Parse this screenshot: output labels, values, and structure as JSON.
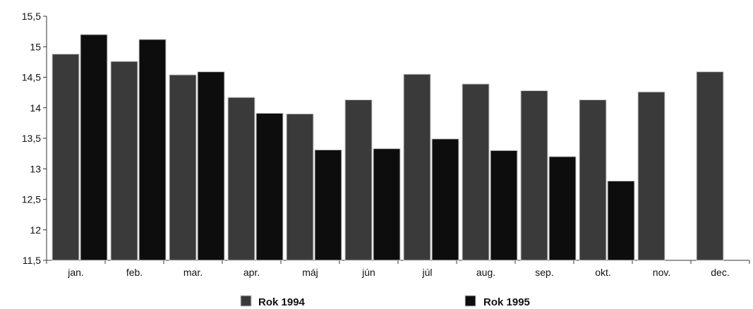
{
  "chart_data": {
    "type": "bar",
    "title": "",
    "xlabel": "",
    "ylabel": "",
    "categories": [
      "jan.",
      "feb.",
      "mar.",
      "apr.",
      "máj",
      "jún",
      "júl",
      "aug.",
      "sep.",
      "okt.",
      "nov.",
      "dec."
    ],
    "series": [
      {
        "name": "Rok 1994",
        "color": "#3a3a3a",
        "values": [
          14.88,
          14.76,
          14.54,
          14.17,
          13.9,
          14.13,
          14.55,
          14.39,
          14.28,
          14.13,
          14.26,
          14.59
        ]
      },
      {
        "name": "Rok 1995",
        "color": "#0d0d0d",
        "values": [
          15.2,
          15.12,
          14.59,
          13.91,
          13.31,
          13.33,
          13.49,
          13.3,
          13.2,
          12.8,
          null,
          null
        ]
      }
    ],
    "ylim": [
      11.5,
      15.5
    ],
    "yticks": [
      "11,5",
      "12",
      "12,5",
      "13",
      "13,5",
      "14",
      "14,5",
      "15",
      "15,5"
    ],
    "grid": false,
    "legend_position": "bottom"
  }
}
